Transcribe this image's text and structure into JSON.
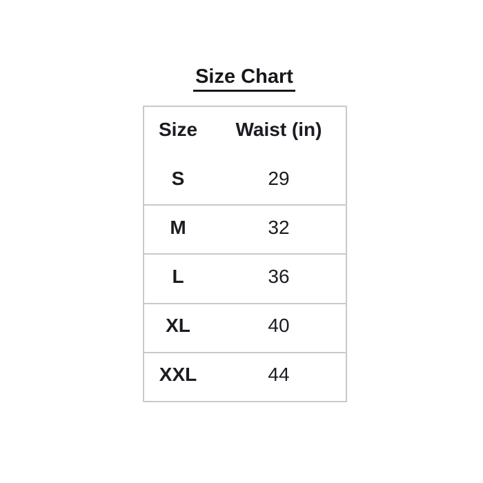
{
  "page": {
    "background": "#ffffff",
    "text_color": "#1b1b21",
    "border_color": "#c9c9c9"
  },
  "title": {
    "text": "Size Chart"
  },
  "table": {
    "columns": [
      "Size",
      "Waist (in)"
    ],
    "rows": [
      {
        "size": "S",
        "waist": "29"
      },
      {
        "size": "M",
        "waist": "32"
      },
      {
        "size": "L",
        "waist": "36"
      },
      {
        "size": "XL",
        "waist": "40"
      },
      {
        "size": "XXL",
        "waist": "44"
      }
    ]
  },
  "chart_data": {
    "type": "table",
    "title": "Size Chart",
    "columns": [
      "Size",
      "Waist (in)"
    ],
    "categories": [
      "S",
      "M",
      "L",
      "XL",
      "XXL"
    ],
    "values": [
      29,
      32,
      36,
      40,
      44
    ]
  }
}
